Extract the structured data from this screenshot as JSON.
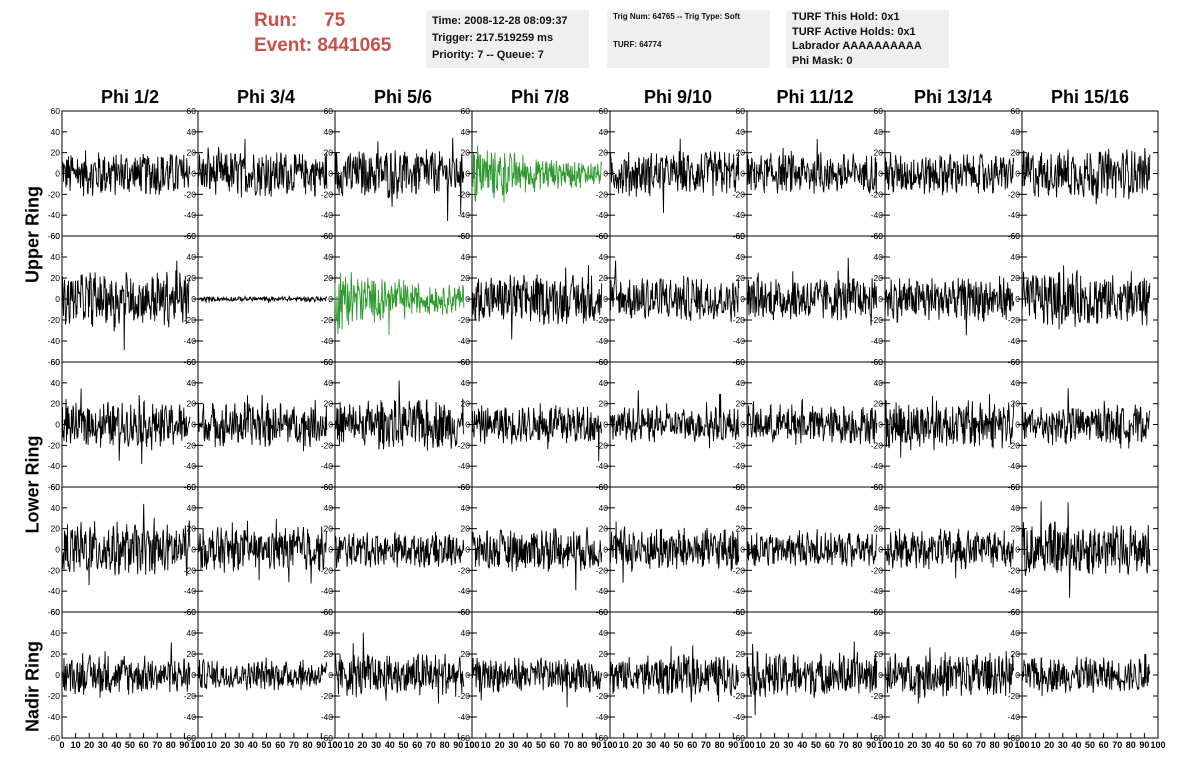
{
  "header": {
    "run_label": "Run:",
    "run_value": "75",
    "event_label": "Event:",
    "event_value": "8441065"
  },
  "info_time": {
    "time": "Time: 2008-12-28 08:09:37",
    "trigger": "Trigger: 217.519259 ms",
    "priority": "Priority: 7 -- Queue: 7"
  },
  "info_trig": {
    "trig": "Trig Num: 64765 -- Trig Type: Soft",
    "turf": "TURF: 64774"
  },
  "info_turf": {
    "this_hold": "TURF This Hold: 0x1",
    "active_holds": "TURF Active Holds: 0x1",
    "labrador": "Labrador AAAAAAAAAA",
    "phi_mask": "Phi Mask: 0"
  },
  "colors": {
    "trace": "#000000",
    "triggered_trace": "#2e9a2e",
    "run_text": "#c9504a"
  },
  "chart_data": {
    "type": "line",
    "columns": [
      "Phi 1/2",
      "Phi 3/4",
      "Phi 5/6",
      "Phi 7/8",
      "Phi 9/10",
      "Phi 11/12",
      "Phi 13/14",
      "Phi 15/16"
    ],
    "ring_labels": [
      {
        "label": "Upper Ring",
        "rows": [
          0,
          1
        ]
      },
      {
        "label": "Lower Ring",
        "rows": [
          2,
          3
        ]
      },
      {
        "label": "Nadir Ring",
        "rows": [
          4
        ]
      }
    ],
    "xlim": [
      0,
      100
    ],
    "ylim": [
      -60,
      60
    ],
    "x_ticks": [
      "0",
      "10",
      "20",
      "30",
      "40",
      "50",
      "60",
      "70",
      "80",
      "90",
      "100"
    ],
    "y_ticks": [
      "-60",
      "-40",
      "-20",
      "0",
      "20",
      "40",
      "60"
    ],
    "waveform_samples": 256,
    "waveform_xmax": 94,
    "panels": [
      [
        {
          "amp": 18
        },
        {
          "amp": 18
        },
        {
          "amp": 20
        },
        {
          "amp": 22,
          "triggered": true,
          "decay": true
        },
        {
          "amp": 18
        },
        {
          "amp": 16
        },
        {
          "amp": 17
        },
        {
          "amp": 20
        }
      ],
      [
        {
          "amp": 22
        },
        {
          "amp": 2
        },
        {
          "amp": 24,
          "triggered": true,
          "decay": true
        },
        {
          "amp": 20
        },
        {
          "amp": 18
        },
        {
          "amp": 18
        },
        {
          "amp": 18
        },
        {
          "amp": 22
        }
      ],
      [
        {
          "amp": 18
        },
        {
          "amp": 18
        },
        {
          "amp": 20
        },
        {
          "amp": 16
        },
        {
          "amp": 14
        },
        {
          "amp": 16
        },
        {
          "amp": 20
        },
        {
          "amp": 16
        }
      ],
      [
        {
          "amp": 22
        },
        {
          "amp": 18
        },
        {
          "amp": 14
        },
        {
          "amp": 18
        },
        {
          "amp": 18
        },
        {
          "amp": 14
        },
        {
          "amp": 16
        },
        {
          "amp": 22
        }
      ],
      [
        {
          "amp": 16
        },
        {
          "amp": 12
        },
        {
          "amp": 18
        },
        {
          "amp": 14
        },
        {
          "amp": 16
        },
        {
          "amp": 18
        },
        {
          "amp": 18
        },
        {
          "amp": 14
        }
      ]
    ]
  }
}
